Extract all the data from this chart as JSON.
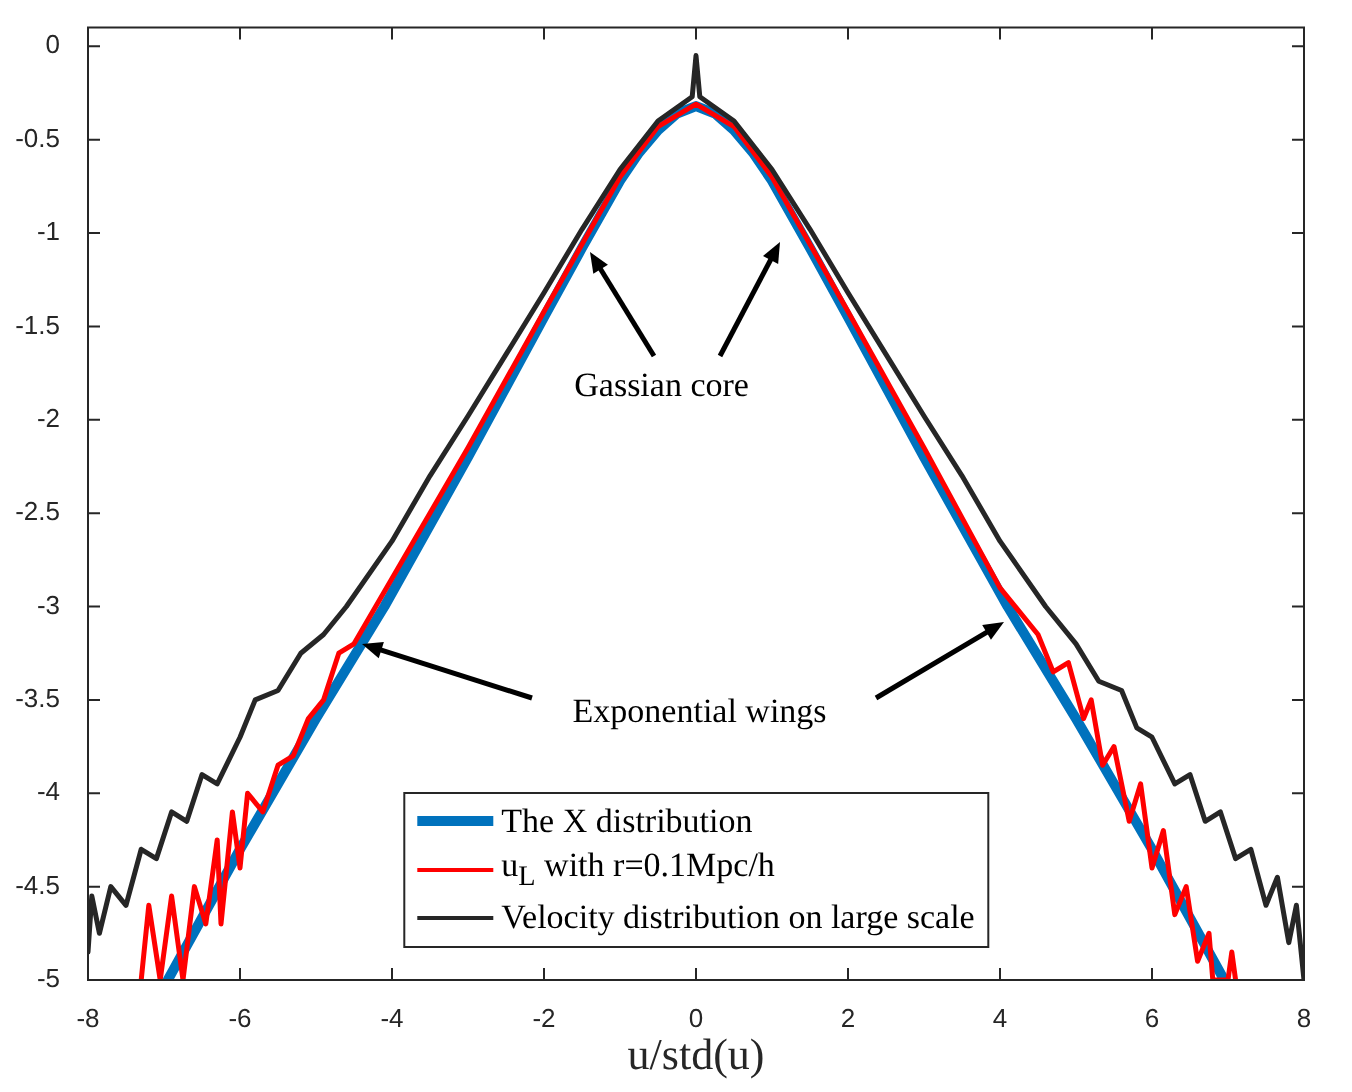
{
  "chart_data": {
    "type": "line",
    "xlabel": "u/std(u)",
    "xlim": [
      -8,
      8
    ],
    "xticks": [
      -8,
      -6,
      -4,
      -2,
      0,
      2,
      4,
      6,
      8
    ],
    "ylim": [
      -5,
      0.1
    ],
    "yticks": [
      -5,
      -4.5,
      -4,
      -3.5,
      -3,
      -2.5,
      -2,
      -1.5,
      -1,
      -0.5,
      0
    ],
    "grid": false,
    "legend": "bottom",
    "marker": "none",
    "line_style": "solid",
    "annotations": [
      {
        "text": "Gassian core",
        "x": -1.4,
        "y": -1.1
      },
      {
        "text": "Exponential wings",
        "x": -4.4,
        "y": -3.2
      }
    ],
    "series": [
      {
        "name": "The X distribution",
        "color": "#0072bd",
        "x": [
          -6.95,
          -6,
          -5,
          -4.1,
          -3,
          -2,
          -1.5,
          -1,
          -0.75,
          -0.5,
          -0.25,
          0,
          0.25,
          0.5,
          0.75,
          1,
          1.5,
          2,
          3,
          4.1,
          5,
          6,
          6.95
        ],
        "values": [
          -5,
          -4.3,
          -3.6,
          -3,
          -2.2,
          -1.45,
          -1.08,
          -0.72,
          -0.57,
          -0.45,
          -0.36,
          -0.32,
          -0.36,
          -0.45,
          -0.57,
          -0.72,
          -1.08,
          -1.45,
          -2.2,
          -3,
          -3.6,
          -4.3,
          -5
        ]
      },
      {
        "name": "u$_{L}$ with r=0.1Mpc/h",
        "color": "#ff0000",
        "x": [
          -7.3,
          -7.2,
          -7.05,
          -6.9,
          -6.75,
          -6.6,
          -6.45,
          -6.3,
          -6.25,
          -6.1,
          -6,
          -5.9,
          -5.7,
          -5.5,
          -5.3,
          -5.1,
          -4.9,
          -4.7,
          -4.5,
          -4,
          -3,
          -2,
          -1.5,
          -1,
          -0.5,
          0,
          0.5,
          1,
          1.5,
          2,
          3,
          4,
          4.5,
          4.7,
          4.9,
          5.1,
          5.2,
          5.35,
          5.5,
          5.7,
          5.85,
          6,
          6.15,
          6.3,
          6.45,
          6.6,
          6.75,
          6.8,
          7,
          7.05,
          7.1
        ],
        "values": [
          -5,
          -4.6,
          -5,
          -4.55,
          -5,
          -4.5,
          -4.7,
          -4.25,
          -4.7,
          -4.1,
          -4.4,
          -4,
          -4.1,
          -3.85,
          -3.8,
          -3.6,
          -3.5,
          -3.25,
          -3.2,
          -2.85,
          -2.15,
          -1.42,
          -1.06,
          -0.7,
          -0.43,
          -0.31,
          -0.43,
          -0.7,
          -1.06,
          -1.42,
          -2.15,
          -2.9,
          -3.15,
          -3.35,
          -3.3,
          -3.6,
          -3.5,
          -3.85,
          -3.75,
          -4.15,
          -3.95,
          -4.4,
          -4.2,
          -4.65,
          -4.5,
          -4.9,
          -4.75,
          -5,
          -5,
          -4.85,
          -5
        ]
      },
      {
        "name": "Velocity distribution on large scale",
        "color": "#262626",
        "x": [
          -8,
          -7.95,
          -7.85,
          -7.7,
          -7.5,
          -7.3,
          -7.1,
          -6.9,
          -6.7,
          -6.5,
          -6.3,
          -6,
          -5.8,
          -5.5,
          -5.2,
          -4.9,
          -4.6,
          -4,
          -3.5,
          -3,
          -2.5,
          -2,
          -1.5,
          -1,
          -0.5,
          -0.05,
          0,
          0.05,
          0.5,
          1,
          1.5,
          2,
          2.5,
          3,
          3.5,
          4,
          4.6,
          5,
          5.3,
          5.6,
          5.8,
          6,
          6.3,
          6.5,
          6.7,
          6.9,
          7.1,
          7.3,
          7.5,
          7.65,
          7.8,
          7.9,
          8
        ],
        "values": [
          -4.85,
          -4.55,
          -4.75,
          -4.5,
          -4.6,
          -4.3,
          -4.35,
          -4.1,
          -4.15,
          -3.9,
          -3.95,
          -3.7,
          -3.5,
          -3.45,
          -3.25,
          -3.15,
          -3,
          -2.65,
          -2.3,
          -1.98,
          -1.65,
          -1.32,
          -0.98,
          -0.66,
          -0.4,
          -0.27,
          -0.05,
          -0.27,
          -0.4,
          -0.66,
          -0.98,
          -1.32,
          -1.65,
          -1.98,
          -2.3,
          -2.65,
          -3,
          -3.2,
          -3.4,
          -3.45,
          -3.65,
          -3.7,
          -3.95,
          -3.9,
          -4.15,
          -4.1,
          -4.35,
          -4.3,
          -4.6,
          -4.45,
          -4.8,
          -4.6,
          -5
        ]
      }
    ]
  }
}
